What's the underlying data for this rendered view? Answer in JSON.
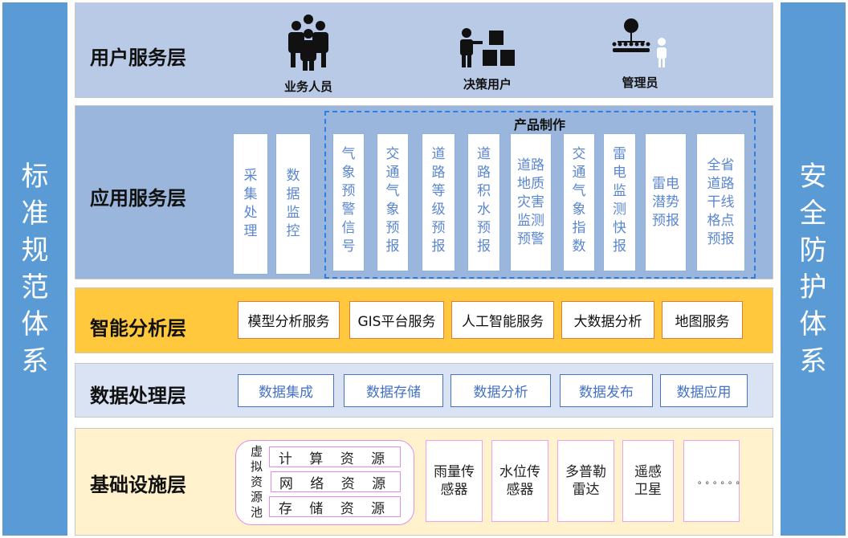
{
  "left_side": "标准规范体系",
  "right_side": "安全防护体系",
  "user_layer": {
    "title": "用户服务层",
    "users": [
      {
        "label": "业务人员",
        "icon": "group-people-icon"
      },
      {
        "label": "决策用户",
        "icon": "presenter-boxes-icon"
      },
      {
        "label": "管理员",
        "icon": "org-admin-icon"
      }
    ]
  },
  "app_layer": {
    "title": "应用服务层",
    "items": [
      "采集处理",
      "数据监控"
    ],
    "product_title": "产品制作",
    "products": [
      "气象预警信号",
      "交通气象预报",
      "道路等级预报",
      "道路积水预报",
      "道路地质灾害监测预警",
      "交通气象指数",
      "雷电监测快报",
      "雷电潜势预报",
      "全省道路干线格点预报"
    ]
  },
  "smart_layer": {
    "title": "智能分析层",
    "items": [
      "模型分析服务",
      "GIS平台服务",
      "人工智能服务",
      "大数据分析",
      "地图服务"
    ]
  },
  "data_layer": {
    "title": "数据处理层",
    "items": [
      "数据集成",
      "数据存储",
      "数据分析",
      "数据发布",
      "数据应用"
    ]
  },
  "base_layer": {
    "title": "基础设施层",
    "pool_label": "虚拟资源池",
    "resources": [
      "计 算 资 源",
      "网 络 资 源",
      "存 储 资 源"
    ],
    "sensors": [
      "雨量传感器",
      "水位传感器",
      "多普勒雷达",
      "遥感卫星",
      "。。。。。。"
    ]
  },
  "colors": {
    "side": "#5b9bd5",
    "user": "#b4c7e7",
    "app": "#9ab6dc",
    "smart": "#ffc83d",
    "data": "#dae3f3",
    "base": "#fff2cc"
  }
}
